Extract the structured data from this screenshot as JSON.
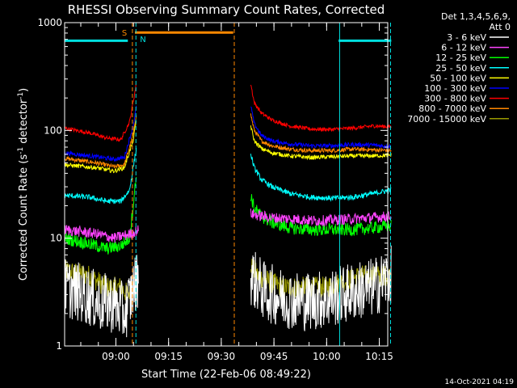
{
  "chart_data": {
    "type": "line",
    "title": "RHESSI Observing Summary Count Rates, Corrected",
    "xlabel": "Start Time (22-Feb-06 08:49:22)",
    "ylabel": "Corrected Count Rate (s⁻¹ detector⁻¹)",
    "ylabel_parts": {
      "main": "Corrected Count Rate (s",
      "sup1": "-1",
      "mid": " detector",
      "sup2": "-1",
      "end": ")"
    },
    "yscale": "log",
    "ylim": [
      1,
      1000
    ],
    "xlim_min": [
      -4,
      88
    ],
    "yticks": [
      {
        "value": 1,
        "label": "1"
      },
      {
        "value": 10,
        "label": "10"
      },
      {
        "value": 100,
        "label": "100"
      },
      {
        "value": 1000,
        "label": "1000"
      }
    ],
    "xticks": [
      {
        "value": 10.6,
        "label": "09:00"
      },
      {
        "value": 25.6,
        "label": "09:15"
      },
      {
        "value": 40.6,
        "label": "09:30"
      },
      {
        "value": 55.6,
        "label": "09:45"
      },
      {
        "value": 70.6,
        "label": "10:00"
      },
      {
        "value": 85.6,
        "label": "10:15"
      }
    ],
    "legend_header": [
      "Det 1,3,4,5,6,9,",
      "Att 0"
    ],
    "legend_position": "right",
    "series": [
      {
        "name": "3 - 6 keV",
        "color": "#ffffff",
        "segments": [
          {
            "x": [
              -4,
              2,
              6,
              10,
              13,
              15,
              17
            ],
            "y": [
              3.5,
              3.0,
              2.5,
              2.5,
              2.0,
              3.0,
              4.5
            ],
            "noise": 0.28
          },
          {
            "x": [
              49,
              53,
              58,
              64,
              70,
              75,
              80,
              84,
              89
            ],
            "y": [
              4.5,
              3.2,
              2.8,
              2.6,
              2.7,
              3.0,
              3.3,
              3.5,
              4.5
            ],
            "noise": 0.28
          }
        ]
      },
      {
        "name": "6 - 12 keV",
        "color": "#ff44ff",
        "segments": [
          {
            "x": [
              -4,
              5,
              10,
              15,
              17
            ],
            "y": [
              12,
              11,
              10,
              11,
              12
            ],
            "noise": 0.05
          },
          {
            "x": [
              49,
              50,
              55,
              62,
              68,
              76,
              83,
              89
            ],
            "y": [
              17,
              16.5,
              15.5,
              15,
              14.5,
              15,
              15.5,
              16
            ],
            "noise": 0.05
          }
        ]
      },
      {
        "name": "12 - 25 keV",
        "color": "#00ff00",
        "segments": [
          {
            "x": [
              -4,
              2,
              8,
              12,
              14.5,
              15.5,
              16.5
            ],
            "y": [
              10,
              9,
              8,
              8.5,
              10,
              20,
              40
            ],
            "noise": 0.06
          },
          {
            "x": [
              49,
              50,
              52,
              55,
              60,
              66,
              72,
              78,
              84,
              89
            ],
            "y": [
              25,
              19,
              16,
              14,
              12.5,
              12,
              12,
              12,
              12.5,
              13
            ],
            "noise": 0.06
          }
        ]
      },
      {
        "name": "25 - 50 keV",
        "color": "#00ffff",
        "segments": [
          {
            "x": [
              -4,
              3,
              8,
              12,
              14.5,
              15.5,
              16.5
            ],
            "y": [
              25,
              24,
              22,
              22,
              28,
              45,
              70
            ],
            "noise": 0.025
          },
          {
            "x": [
              49,
              50,
              52,
              55,
              60,
              66,
              72,
              78,
              84,
              89
            ],
            "y": [
              60,
              45,
              35,
              30,
              26,
              24,
              23.5,
              24,
              26,
              28
            ],
            "noise": 0.025
          }
        ]
      },
      {
        "name": "50 - 100 keV",
        "color": "#ffff00",
        "segments": [
          {
            "x": [
              -4,
              5,
              10,
              13,
              15.5,
              16.5
            ],
            "y": [
              48,
              45,
              42,
              45,
              80,
              130
            ],
            "noise": 0.02
          },
          {
            "x": [
              49,
              50,
              52,
              55,
              60,
              66,
              72,
              78,
              84,
              89
            ],
            "y": [
              110,
              80,
              68,
              62,
              58,
              56,
              57,
              58,
              58,
              59
            ],
            "noise": 0.02
          }
        ]
      },
      {
        "name": "100 - 300 keV",
        "color": "#0000ff",
        "segments": [
          {
            "x": [
              -4,
              5,
              10,
              13,
              15.5,
              16.5
            ],
            "y": [
              62,
              57,
              54,
              56,
              110,
              170
            ],
            "noise": 0.02
          },
          {
            "x": [
              49,
              50,
              52,
              55,
              60,
              66,
              72,
              78,
              84,
              89
            ],
            "y": [
              170,
              115,
              90,
              80,
              75,
              72,
              72,
              74,
              73,
              71
            ],
            "noise": 0.02
          }
        ]
      },
      {
        "name": "300 - 800 keV",
        "color": "#ff0000",
        "segments": [
          {
            "x": [
              -4,
              3,
              8,
              12,
              14.5,
              16.5
            ],
            "y": [
              105,
              95,
              85,
              82,
              120,
              280
            ],
            "noise": 0.018
          },
          {
            "x": [
              49,
              50,
              52,
              55,
              60,
              66,
              72,
              78,
              84,
              89
            ],
            "y": [
              270,
              180,
              145,
              125,
              110,
              103,
              102,
              105,
              110,
              108
            ],
            "noise": 0.018
          }
        ]
      },
      {
        "name": "800 - 7000 keV",
        "color": "#ff8800",
        "segments": [
          {
            "x": [
              -4,
              5,
              10,
              13,
              15.5,
              16.5
            ],
            "y": [
              55,
              50,
              46,
              48,
              90,
              150
            ],
            "noise": 0.02
          },
          {
            "x": [
              49,
              50,
              52,
              55,
              60,
              66,
              72,
              78,
              84,
              89
            ],
            "y": [
              140,
              100,
              80,
              72,
              67,
              65,
              65,
              67,
              66,
              65
            ],
            "noise": 0.02
          }
        ]
      },
      {
        "name": "7000 - 15000 keV",
        "color": "#999900",
        "segments": [
          {
            "x": [
              -4,
              3,
              8,
              12,
              14,
              16
            ],
            "y": [
              5,
              4.5,
              3.5,
              3.5,
              3.0,
              4.0
            ],
            "noise": 0.1
          },
          {
            "x": [
              49,
              51,
              54,
              58,
              64,
              70,
              76,
              80,
              85,
              89
            ],
            "y": [
              5.5,
              4.5,
              4.0,
              3.5,
              3.5,
              3.5,
              4.0,
              4.5,
              4.5,
              4.5
            ],
            "noise": 0.1
          }
        ]
      }
    ],
    "bars": [
      {
        "label": "",
        "color": "#00e0e0",
        "y": 680,
        "x": [
          -4,
          14
        ]
      },
      {
        "label": "",
        "color": "#00e0e0",
        "y": 680,
        "x": [
          74,
          89
        ]
      },
      {
        "label": "",
        "color": "#ff8800",
        "y": 810,
        "x": [
          16,
          44
        ]
      }
    ],
    "vlines": [
      {
        "x": -4,
        "color": "#00e0e0",
        "style": "solid"
      },
      {
        "x": 15.3,
        "color": "#ff8800",
        "style": "dashed"
      },
      {
        "x": 16.3,
        "color": "#00e0e0",
        "style": "dashed"
      },
      {
        "x": 44.3,
        "color": "#ff8800",
        "style": "dashed"
      },
      {
        "x": 74.3,
        "color": "#00e0e0",
        "style": "solid"
      },
      {
        "x": 88.8,
        "color": "#00e0e0",
        "style": "dashed"
      }
    ],
    "markers": [
      {
        "label": "S",
        "color": "#ff8800"
      },
      {
        "label": "N",
        "color": "#00e0e0"
      }
    ],
    "footer_date": "14-Oct-2021 04:19"
  }
}
